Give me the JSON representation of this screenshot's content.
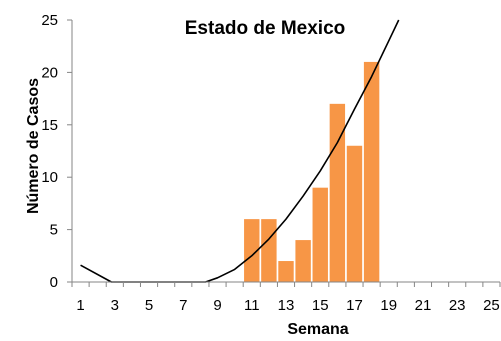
{
  "chart_data": {
    "type": "bar",
    "title": "Estado de Mexico",
    "xlabel": "Semana",
    "ylabel": "Número de Casos",
    "xlim": [
      1,
      25
    ],
    "ylim": [
      0,
      25
    ],
    "yticks": [
      0,
      5,
      10,
      15,
      20,
      25
    ],
    "xticks": [
      1,
      3,
      5,
      7,
      9,
      11,
      13,
      15,
      17,
      19,
      21,
      23,
      25
    ],
    "grid": false,
    "bar_color": "#f79646",
    "x": [
      11,
      12,
      13,
      14,
      15,
      16,
      17,
      18
    ],
    "values": [
      6,
      6,
      2,
      4,
      9,
      17,
      13,
      21
    ],
    "trendline": {
      "type": "polynomial",
      "color": "#000000",
      "points": [
        {
          "x": 1,
          "y": 1.6
        },
        {
          "x": 2.8,
          "y": 0
        },
        {
          "x": 8.3,
          "y": 0
        },
        {
          "x": 9,
          "y": 0.4
        },
        {
          "x": 10,
          "y": 1.2
        },
        {
          "x": 11,
          "y": 2.5
        },
        {
          "x": 12,
          "y": 4.1
        },
        {
          "x": 13,
          "y": 6.0
        },
        {
          "x": 14,
          "y": 8.2
        },
        {
          "x": 15,
          "y": 10.6
        },
        {
          "x": 16,
          "y": 13.3
        },
        {
          "x": 17,
          "y": 16.5
        },
        {
          "x": 18,
          "y": 19.6
        },
        {
          "x": 19,
          "y": 23.0
        },
        {
          "x": 19.7,
          "y": 25.4
        }
      ]
    }
  }
}
